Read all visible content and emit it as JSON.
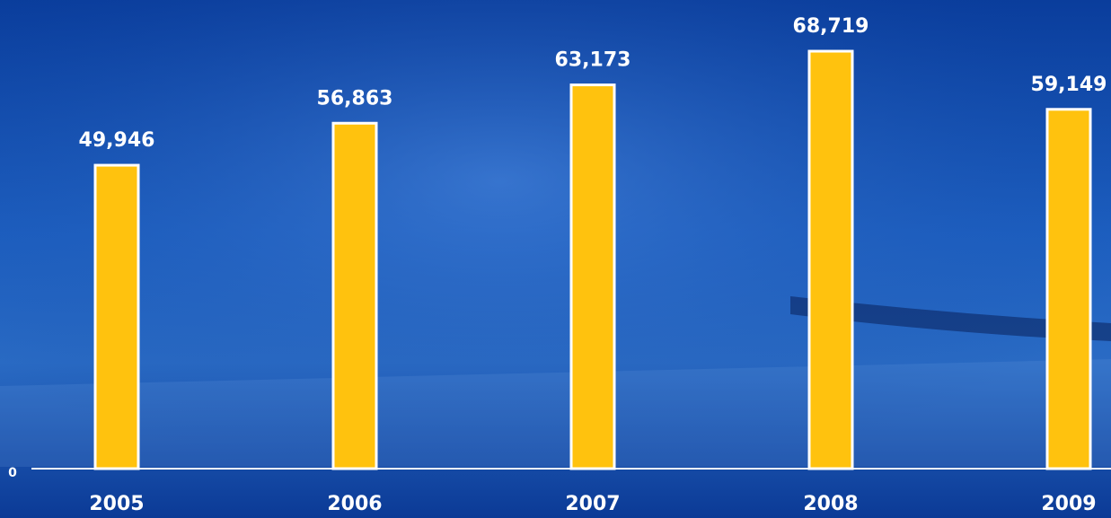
{
  "chart_data": {
    "type": "bar",
    "categories": [
      "2005",
      "2006",
      "2007",
      "2008",
      "2009"
    ],
    "values": [
      49946,
      56863,
      63173,
      68719,
      59149
    ],
    "value_labels": [
      "49,946",
      "56,863",
      "63,173",
      "68,719",
      "59,149"
    ],
    "color": "#ffc20e",
    "ylim": [
      0,
      77000
    ],
    "yticks": [
      0
    ]
  }
}
